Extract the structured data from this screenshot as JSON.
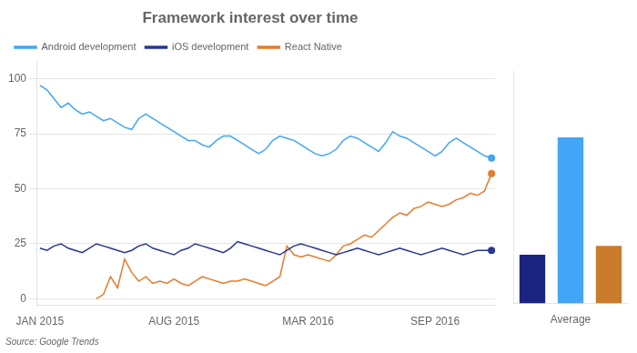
{
  "chart_data": [
    {
      "type": "line",
      "title": "Framework interest over time",
      "annotations": [
        "Source: Google Trends"
      ],
      "categories": [
        "JAN 2015",
        null,
        null,
        null,
        null,
        null,
        null,
        null,
        null,
        null,
        null,
        null,
        null,
        null,
        null,
        null,
        null,
        null,
        null,
        "AUG 2015",
        null,
        null,
        null,
        null,
        null,
        null,
        null,
        null,
        null,
        null,
        null,
        null,
        null,
        null,
        null,
        null,
        null,
        null,
        "MAR 2016",
        null,
        null,
        null,
        null,
        null,
        null,
        null,
        null,
        null,
        null,
        null,
        null,
        null,
        null,
        null,
        null,
        null,
        "SEP 2016",
        null,
        null,
        null,
        null,
        null,
        null,
        null,
        null
      ],
      "series": [
        {
          "name": "Android development",
          "color": "#42a5f5",
          "values": [
            97,
            95,
            91,
            87,
            89,
            86,
            84,
            85,
            83,
            81,
            82,
            80,
            78,
            77,
            82,
            84,
            82,
            80,
            78,
            76,
            74,
            72,
            72,
            70,
            69,
            72,
            74,
            74,
            72,
            70,
            68,
            66,
            68,
            72,
            74,
            73,
            72,
            70,
            68,
            66,
            65,
            66,
            68,
            72,
            74,
            73,
            71,
            69,
            67,
            71,
            76,
            74,
            73,
            71,
            69,
            67,
            65,
            67,
            71,
            73,
            71,
            69,
            67,
            65,
            64
          ]
        },
        {
          "name": "iOS development",
          "color": "#283593",
          "values": [
            23,
            22,
            24,
            25,
            23,
            22,
            21,
            23,
            25,
            24,
            23,
            22,
            21,
            22,
            24,
            25,
            23,
            22,
            21,
            20,
            22,
            23,
            25,
            24,
            23,
            22,
            21,
            23,
            26,
            25,
            24,
            23,
            22,
            21,
            20,
            22,
            24,
            25,
            24,
            23,
            22,
            21,
            20,
            21,
            22,
            23,
            22,
            21,
            20,
            21,
            22,
            23,
            22,
            21,
            20,
            21,
            22,
            23,
            22,
            21,
            20,
            21,
            22,
            22,
            22
          ]
        },
        {
          "name": "React Native",
          "color": "#e67c2b",
          "values": [
            null,
            null,
            null,
            null,
            null,
            null,
            null,
            null,
            0,
            2,
            10,
            5,
            18,
            12,
            8,
            10,
            7,
            8,
            7,
            9,
            7,
            6,
            8,
            10,
            9,
            8,
            7,
            8,
            8,
            9,
            8,
            7,
            6,
            8,
            10,
            24,
            20,
            19,
            20,
            19,
            18,
            17,
            20,
            24,
            25,
            27,
            29,
            28,
            31,
            34,
            37,
            39,
            38,
            41,
            42,
            44,
            43,
            42,
            43,
            45,
            46,
            48,
            47,
            49,
            57
          ]
        }
      ],
      "ylim": [
        -3,
        108
      ],
      "yticks": [
        0,
        25,
        50,
        75,
        100
      ],
      "grid": true,
      "legend": "top"
    },
    {
      "type": "bar",
      "categories": [
        null,
        "Average",
        null
      ],
      "values": [
        22,
        75,
        26
      ],
      "colors": [
        "#1a237e",
        "#42a5f5",
        "#c97c2b"
      ],
      "ylim": [
        0,
        105
      ],
      "tick_labels": "x",
      "grid": false
    }
  ]
}
